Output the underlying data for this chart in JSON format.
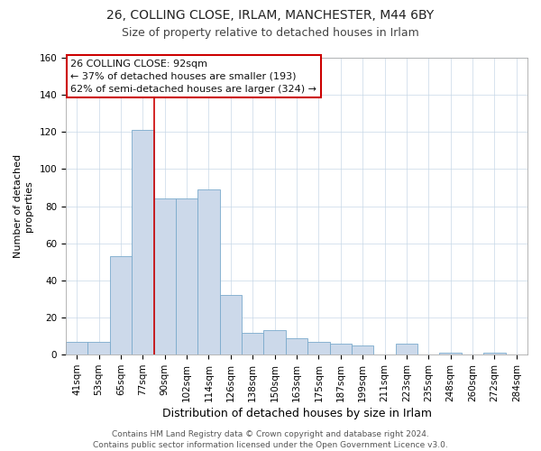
{
  "title1": "26, COLLING CLOSE, IRLAM, MANCHESTER, M44 6BY",
  "title2": "Size of property relative to detached houses in Irlam",
  "xlabel": "Distribution of detached houses by size in Irlam",
  "ylabel": "Number of detached\nproperties",
  "bar_labels": [
    "41sqm",
    "53sqm",
    "65sqm",
    "77sqm",
    "90sqm",
    "102sqm",
    "114sqm",
    "126sqm",
    "138sqm",
    "150sqm",
    "163sqm",
    "175sqm",
    "187sqm",
    "199sqm",
    "211sqm",
    "223sqm",
    "235sqm",
    "248sqm",
    "260sqm",
    "272sqm",
    "284sqm"
  ],
  "bar_values": [
    7,
    7,
    53,
    121,
    84,
    84,
    89,
    32,
    12,
    13,
    9,
    7,
    6,
    5,
    0,
    6,
    0,
    1,
    0,
    1,
    0
  ],
  "bar_color": "#ccd9ea",
  "bar_edge_color": "#7aaacc",
  "highlight_color": "#cc0000",
  "annotation_title": "26 COLLING CLOSE: 92sqm",
  "annotation_line1": "← 37% of detached houses are smaller (193)",
  "annotation_line2": "62% of semi-detached houses are larger (324) →",
  "annotation_box_color": "#ffffff",
  "annotation_box_edge": "#cc0000",
  "footer1": "Contains HM Land Registry data © Crown copyright and database right 2024.",
  "footer2": "Contains public sector information licensed under the Open Government Licence v3.0.",
  "ylim": [
    0,
    160
  ],
  "yticks": [
    0,
    20,
    40,
    60,
    80,
    100,
    120,
    140,
    160
  ],
  "title1_fontsize": 10,
  "title2_fontsize": 9,
  "xlabel_fontsize": 9,
  "ylabel_fontsize": 8,
  "tick_fontsize": 7.5,
  "annotation_fontsize": 8,
  "footer_fontsize": 6.5
}
